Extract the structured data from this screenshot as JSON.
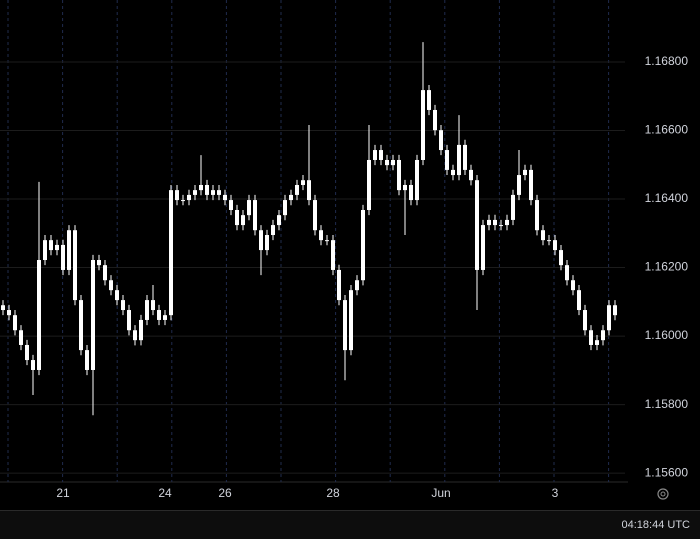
{
  "chart_data": {
    "type": "candlestick",
    "color": "#ffffff",
    "grid": true,
    "categories": [
      null,
      null,
      null,
      null,
      null,
      null,
      null,
      null,
      null,
      null,
      "21",
      null,
      null,
      null,
      null,
      null,
      null,
      null,
      null,
      null,
      null,
      null,
      null,
      null,
      null,
      null,
      null,
      "24",
      null,
      null,
      null,
      null,
      null,
      null,
      null,
      null,
      null,
      "26",
      null,
      null,
      null,
      null,
      null,
      null,
      null,
      null,
      null,
      null,
      null,
      null,
      null,
      null,
      null,
      null,
      null,
      "28",
      null,
      null,
      null,
      null,
      null,
      null,
      null,
      null,
      null,
      null,
      null,
      null,
      null,
      null,
      null,
      null,
      null,
      "Jun",
      null,
      null,
      null,
      null,
      null,
      null,
      null,
      null,
      null,
      null,
      null,
      null,
      null,
      null,
      null,
      null,
      null,
      null,
      "3",
      null,
      null,
      null,
      null,
      null,
      null,
      null,
      null,
      null,
      null
    ],
    "open": [
      1.1609,
      1.16076,
      1.16061,
      1.16017,
      1.15974,
      1.1593,
      1.15901,
      1.16222,
      1.1628,
      1.16251,
      1.16266,
      1.16193,
      1.16309,
      1.16105,
      1.15959,
      1.15901,
      1.16222,
      1.16207,
      1.16163,
      1.16134,
      1.16105,
      1.16076,
      1.16017,
      1.15988,
      1.16047,
      1.16105,
      1.16076,
      1.16047,
      1.16061,
      1.16426,
      1.16397,
      1.16397,
      1.16412,
      1.16426,
      1.16441,
      1.16412,
      1.16426,
      1.16412,
      1.16397,
      1.16368,
      1.16324,
      1.16353,
      1.16397,
      1.16309,
      1.16251,
      1.16295,
      1.16324,
      1.16353,
      1.16397,
      1.16412,
      1.16441,
      1.16455,
      1.16397,
      1.16309,
      1.1628,
      1.1628,
      1.16193,
      1.16105,
      1.15959,
      1.16134,
      1.16163,
      1.16368,
      1.16514,
      1.16543,
      1.16514,
      1.16499,
      1.16514,
      1.16426,
      1.16441,
      1.16397,
      1.16514,
      1.16718,
      1.1666,
      1.16601,
      1.16543,
      1.16485,
      1.1647,
      1.16558,
      1.16485,
      1.16455,
      1.16193,
      1.16324,
      1.16339,
      1.16324,
      1.16324,
      1.16339,
      1.16412,
      1.1647,
      1.16485,
      1.16397,
      1.16309,
      1.1628,
      1.1628,
      1.16251,
      1.16207,
      1.16163,
      1.16134,
      1.16076,
      1.16017,
      1.15974,
      1.15988,
      1.16017,
      1.1609
    ],
    "high": [
      1.16105,
      1.16091,
      1.16076,
      1.16032,
      1.15989,
      1.15945,
      1.1645,
      1.16295,
      1.16295,
      1.16281,
      1.16281,
      1.16324,
      1.16324,
      1.1612,
      1.15974,
      1.16237,
      1.16237,
      1.16222,
      1.16178,
      1.16149,
      1.1612,
      1.16091,
      1.16032,
      1.16062,
      1.1612,
      1.16149,
      1.16091,
      1.16076,
      1.16441,
      1.16441,
      1.16412,
      1.16427,
      1.16441,
      1.16528,
      1.16456,
      1.16441,
      1.16441,
      1.16427,
      1.16412,
      1.16383,
      1.16368,
      1.16412,
      1.16412,
      1.16324,
      1.1631,
      1.16339,
      1.16368,
      1.16412,
      1.16427,
      1.16456,
      1.1647,
      1.16616,
      1.16412,
      1.16324,
      1.16295,
      1.16295,
      1.16208,
      1.1612,
      1.16149,
      1.16178,
      1.16383,
      1.16616,
      1.16558,
      1.16558,
      1.16529,
      1.16529,
      1.16529,
      1.16456,
      1.16456,
      1.16529,
      1.16858,
      1.16733,
      1.16675,
      1.16616,
      1.16558,
      1.165,
      1.16645,
      1.16573,
      1.165,
      1.1647,
      1.16339,
      1.16354,
      1.16354,
      1.16339,
      1.16354,
      1.16427,
      1.16543,
      1.165,
      1.165,
      1.16412,
      1.16324,
      1.16295,
      1.16295,
      1.16266,
      1.16222,
      1.16178,
      1.16149,
      1.16091,
      1.16032,
      1.16003,
      1.16032,
      1.16105,
      1.16105
    ],
    "low": [
      1.16061,
      1.16046,
      1.16002,
      1.15959,
      1.15915,
      1.15828,
      1.15886,
      1.16207,
      1.16236,
      1.16236,
      1.16178,
      1.16178,
      1.1609,
      1.15944,
      1.15886,
      1.15769,
      1.16192,
      1.16148,
      1.16119,
      1.1609,
      1.16061,
      1.16002,
      1.15973,
      1.15973,
      1.16032,
      1.16061,
      1.16032,
      1.16032,
      1.16046,
      1.16382,
      1.16382,
      1.16382,
      1.16397,
      1.16411,
      1.16397,
      1.16397,
      1.16397,
      1.16382,
      1.16353,
      1.16309,
      1.16309,
      1.16338,
      1.16294,
      1.16178,
      1.16236,
      1.1628,
      1.16309,
      1.16338,
      1.16382,
      1.16397,
      1.16426,
      1.16382,
      1.16294,
      1.16265,
      1.16265,
      1.16178,
      1.1609,
      1.15871,
      1.15944,
      1.16119,
      1.16148,
      1.16353,
      1.16499,
      1.16499,
      1.16484,
      1.16484,
      1.16411,
      1.16295,
      1.16382,
      1.16382,
      1.16499,
      1.16645,
      1.16586,
      1.16528,
      1.1647,
      1.16455,
      1.16455,
      1.1647,
      1.1644,
      1.16076,
      1.16178,
      1.16309,
      1.16309,
      1.16309,
      1.16309,
      1.16324,
      1.16397,
      1.16455,
      1.16382,
      1.16294,
      1.16265,
      1.16265,
      1.16236,
      1.16192,
      1.16148,
      1.16119,
      1.16061,
      1.16002,
      1.15959,
      1.15959,
      1.15973,
      1.16002,
      1.16046
    ],
    "close": [
      1.16076,
      1.16061,
      1.16017,
      1.15974,
      1.1593,
      1.15901,
      1.16222,
      1.1628,
      1.16251,
      1.16266,
      1.16193,
      1.16309,
      1.16105,
      1.15959,
      1.15901,
      1.16222,
      1.16207,
      1.16163,
      1.16134,
      1.16105,
      1.16076,
      1.16017,
      1.15988,
      1.16047,
      1.16105,
      1.16076,
      1.16047,
      1.16061,
      1.16426,
      1.16397,
      1.16397,
      1.16412,
      1.16426,
      1.16441,
      1.16412,
      1.16426,
      1.16412,
      1.16397,
      1.16368,
      1.16324,
      1.16353,
      1.16397,
      1.16309,
      1.16251,
      1.16295,
      1.16324,
      1.16353,
      1.16397,
      1.16412,
      1.16441,
      1.16455,
      1.16397,
      1.16309,
      1.1628,
      1.1628,
      1.16193,
      1.16105,
      1.15959,
      1.16134,
      1.16163,
      1.16368,
      1.16514,
      1.16543,
      1.16514,
      1.16499,
      1.16514,
      1.16426,
      1.16441,
      1.16397,
      1.16514,
      1.16718,
      1.1666,
      1.16601,
      1.16543,
      1.16485,
      1.1647,
      1.16558,
      1.16485,
      1.16455,
      1.16193,
      1.16324,
      1.16339,
      1.16324,
      1.16324,
      1.16339,
      1.16412,
      1.1647,
      1.16485,
      1.16397,
      1.16309,
      1.1628,
      1.1628,
      1.16251,
      1.16207,
      1.16163,
      1.16134,
      1.16076,
      1.16017,
      1.15974,
      1.15988,
      1.16017,
      1.1609,
      1.16061
    ],
    "ylim": [
      1.15574,
      1.16981
    ],
    "yticks": [
      {
        "value": 1.168,
        "label": "1.16800"
      },
      {
        "value": 1.166,
        "label": "1.16600"
      },
      {
        "value": 1.164,
        "label": "1.16400"
      },
      {
        "value": 1.162,
        "label": "1.16200"
      },
      {
        "value": 1.16,
        "label": "1.16000"
      },
      {
        "value": 1.158,
        "label": "1.15800"
      },
      {
        "value": 1.156,
        "label": "1.15600"
      }
    ]
  },
  "status": {
    "time": "04:18:44 UTC"
  }
}
